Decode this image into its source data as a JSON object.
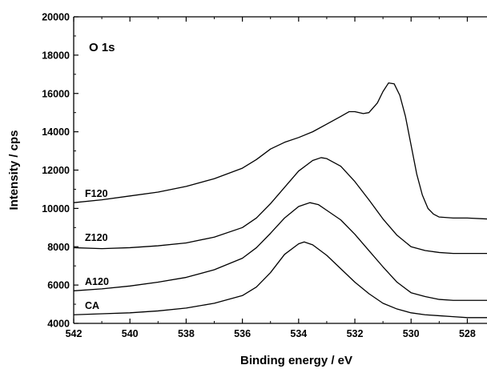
{
  "chart_data": {
    "type": "line",
    "title": "",
    "panel_label": "O 1s",
    "xlabel": "Binding energy / eV",
    "ylabel": "Intensity / cps",
    "xlim": [
      542,
      527.3
    ],
    "x_reversed": true,
    "ylim": [
      4000,
      20000
    ],
    "x_ticks": [
      542,
      540,
      538,
      536,
      534,
      532,
      530,
      528
    ],
    "x_tick_labels": [
      "542",
      "540",
      "538",
      "536",
      "534",
      "532",
      "530",
      "528"
    ],
    "y_ticks": [
      4000,
      6000,
      8000,
      10000,
      12000,
      14000,
      16000,
      18000,
      20000
    ],
    "y_tick_labels": [
      "4000",
      "6000",
      "8000",
      "10000",
      "12000",
      "14000",
      "16000",
      "18000",
      "20000"
    ],
    "grid": false,
    "legend": "none",
    "series": [
      {
        "name": "F120",
        "x": [
          542,
          541,
          540,
          539,
          538,
          537,
          536,
          535.5,
          535,
          534.5,
          534,
          533.5,
          533,
          532.5,
          532.2,
          532,
          531.7,
          531.5,
          531.2,
          531,
          530.8,
          530.6,
          530.4,
          530.2,
          530,
          529.8,
          529.6,
          529.4,
          529.2,
          529,
          528.5,
          528,
          527.3
        ],
        "y": [
          10300,
          10450,
          10650,
          10850,
          11150,
          11550,
          12100,
          12550,
          13100,
          13450,
          13700,
          14000,
          14400,
          14800,
          15050,
          15050,
          14950,
          15000,
          15500,
          16100,
          16550,
          16500,
          15900,
          14800,
          13300,
          11800,
          10700,
          10000,
          9700,
          9550,
          9500,
          9500,
          9450
        ]
      },
      {
        "name": "Z120",
        "x": [
          542,
          541,
          540,
          539,
          538,
          537,
          536,
          535.5,
          535,
          534.5,
          534,
          533.5,
          533.2,
          533,
          532.5,
          532,
          531.5,
          531,
          530.5,
          530,
          529.5,
          529,
          528.5,
          528,
          527.3
        ],
        "y": [
          7950,
          7900,
          7950,
          8050,
          8200,
          8500,
          9000,
          9500,
          10250,
          11100,
          11950,
          12500,
          12650,
          12600,
          12200,
          11400,
          10450,
          9450,
          8600,
          8000,
          7800,
          7700,
          7650,
          7650,
          7650
        ]
      },
      {
        "name": "A120",
        "x": [
          542,
          541,
          540,
          539,
          538,
          537,
          536,
          535.5,
          535,
          534.5,
          534,
          533.6,
          533.3,
          533,
          532.5,
          532,
          531.5,
          531,
          530.5,
          530,
          529.5,
          529,
          528.5,
          528,
          527.3
        ],
        "y": [
          5700,
          5800,
          5950,
          6150,
          6400,
          6800,
          7400,
          7950,
          8700,
          9500,
          10100,
          10300,
          10200,
          9900,
          9400,
          8650,
          7800,
          6950,
          6150,
          5600,
          5400,
          5250,
          5200,
          5200,
          5200
        ]
      },
      {
        "name": "CA",
        "x": [
          542,
          541,
          540,
          539,
          538,
          537,
          536,
          535.5,
          535,
          534.5,
          534,
          533.8,
          533.5,
          533,
          532.5,
          532,
          531.5,
          531,
          530.5,
          530,
          529.5,
          529,
          528.5,
          528,
          527.3
        ],
        "y": [
          4450,
          4500,
          4550,
          4650,
          4800,
          5050,
          5450,
          5900,
          6650,
          7600,
          8150,
          8250,
          8100,
          7550,
          6850,
          6150,
          5550,
          5050,
          4750,
          4550,
          4450,
          4400,
          4350,
          4300,
          4300
        ]
      }
    ],
    "series_label_positions": [
      {
        "name": "F120",
        "x": 541.6,
        "y": 10600
      },
      {
        "name": "Z120",
        "x": 541.6,
        "y": 8300
      },
      {
        "name": "A120",
        "x": 541.6,
        "y": 6000
      },
      {
        "name": "CA",
        "x": 541.6,
        "y": 4750
      }
    ]
  }
}
